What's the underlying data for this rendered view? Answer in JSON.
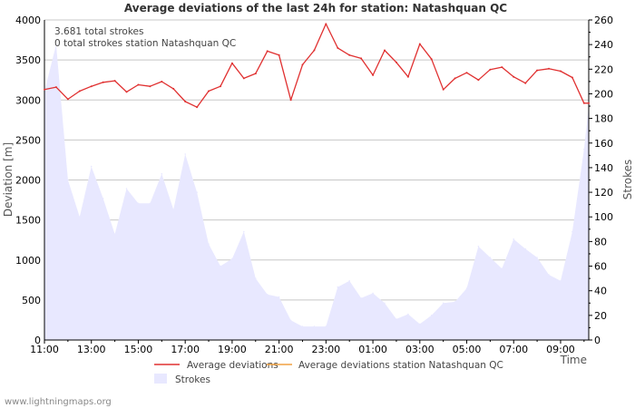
{
  "chart_data": {
    "type": "line",
    "title": "Average deviations of the last 24h for station: Natashquan QC",
    "xlabel": "Time",
    "ylabel": "Deviation  [m]",
    "y2label": "Strokes",
    "ylim": [
      0,
      4000
    ],
    "y2lim": [
      0,
      260
    ],
    "y_ticks": [
      0,
      500,
      1000,
      1500,
      2000,
      2500,
      3000,
      3500,
      4000
    ],
    "y2_ticks": [
      0,
      20,
      40,
      60,
      80,
      100,
      120,
      140,
      160,
      180,
      200,
      220,
      240,
      260
    ],
    "x_range_hours": [
      0,
      23.2
    ],
    "x_ticks": [
      {
        "h": 0,
        "label": "11:00"
      },
      {
        "h": 2,
        "label": "13:00"
      },
      {
        "h": 4,
        "label": "15:00"
      },
      {
        "h": 6,
        "label": "17:00"
      },
      {
        "h": 8,
        "label": "19:00"
      },
      {
        "h": 10,
        "label": "21:00"
      },
      {
        "h": 12,
        "label": "23:00"
      },
      {
        "h": 14,
        "label": "01:00"
      },
      {
        "h": 16,
        "label": "03:00"
      },
      {
        "h": 18,
        "label": "05:00"
      },
      {
        "h": 20,
        "label": "07:00"
      },
      {
        "h": 22,
        "label": "09:00"
      }
    ],
    "annotations": [
      "3.681 total strokes",
      "0 total strokes station Natashquan QC"
    ],
    "legend": {
      "placement": "bottom",
      "items": [
        {
          "label": "Average deviations",
          "color": "#e03030",
          "kind": "line"
        },
        {
          "label": "Average deviations station Natashquan QC",
          "color": "#f0a040",
          "kind": "line"
        },
        {
          "label": "Strokes",
          "color": "#e8e8ff",
          "kind": "area"
        }
      ]
    },
    "series": [
      {
        "name": "Average deviations",
        "axis": "left",
        "color": "#e03030",
        "x": [
          0,
          0.5,
          1,
          1.5,
          2,
          2.5,
          3,
          3.5,
          4,
          4.5,
          5,
          5.5,
          6,
          6.5,
          7,
          7.5,
          8,
          8.5,
          9,
          9.5,
          10,
          10.5,
          11,
          11.5,
          12,
          12.5,
          13,
          13.5,
          14,
          14.5,
          15,
          15.5,
          16,
          16.5,
          17,
          17.5,
          18,
          18.5,
          19,
          19.5,
          20,
          20.5,
          21,
          21.5,
          22,
          22.5,
          23,
          23.2
        ],
        "values": [
          3130,
          3160,
          3010,
          3110,
          3170,
          3220,
          3240,
          3100,
          3190,
          3170,
          3230,
          3140,
          2980,
          2910,
          3110,
          3170,
          3460,
          3270,
          3330,
          3610,
          3560,
          3000,
          3440,
          3620,
          3950,
          3650,
          3560,
          3520,
          3310,
          3620,
          3470,
          3290,
          3700,
          3510,
          3130,
          3270,
          3340,
          3250,
          3380,
          3410,
          3290,
          3210,
          3370,
          3390,
          3360,
          3280,
          2960,
          2960
        ]
      },
      {
        "name": "Average deviations station Natashquan QC",
        "axis": "left",
        "color": "#f0a040",
        "x": [],
        "values": []
      },
      {
        "name": "Strokes",
        "axis": "right",
        "color": "#e8e8ff",
        "x": [
          0,
          0.5,
          1,
          1.5,
          2,
          2.5,
          3,
          3.5,
          4,
          4.5,
          5,
          5.5,
          6,
          6.5,
          7,
          7.5,
          8,
          8.5,
          9,
          9.5,
          10,
          10.5,
          11,
          11.5,
          12,
          12.5,
          13,
          13.5,
          14,
          14.5,
          15,
          15.5,
          16,
          16.5,
          17,
          17.5,
          18,
          18.5,
          19,
          19.5,
          20,
          20.5,
          21,
          21.5,
          22,
          22.5,
          23,
          23.2
        ],
        "values": [
          202,
          240,
          130,
          100,
          141,
          115,
          86,
          123,
          111,
          111,
          135,
          106,
          151,
          120,
          78,
          60,
          66,
          88,
          50,
          37,
          35,
          16,
          11,
          11,
          11,
          43,
          48,
          34,
          38,
          30,
          17,
          21,
          13,
          20,
          30,
          31,
          42,
          76,
          67,
          58,
          82,
          74,
          67,
          53,
          48,
          88,
          155,
          190
        ]
      }
    ]
  },
  "footer": "www.lightningmaps.org"
}
